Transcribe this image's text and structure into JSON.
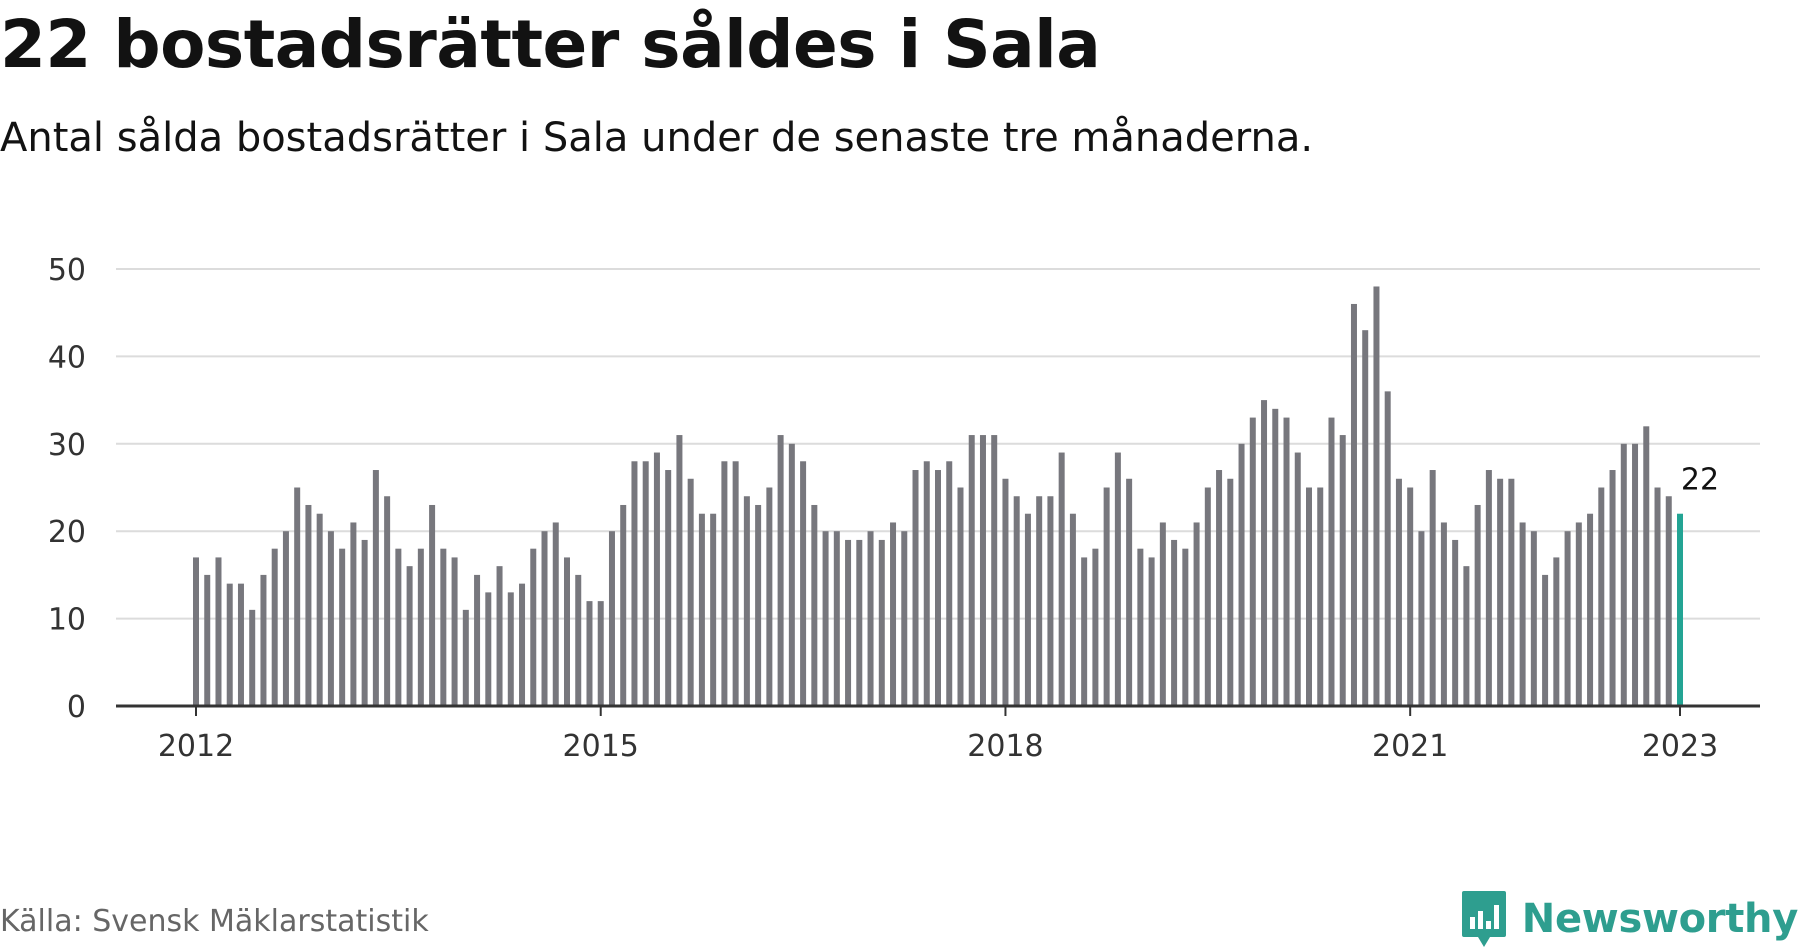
{
  "header": {
    "title": "22 bostadsrätter såldes i Sala",
    "subtitle": "Antal sålda bostadsrätter i Sala under de senaste tre månaderna."
  },
  "footer": {
    "source": "Källa: Svensk Mäklarstatistik",
    "brand": "Newsworthy",
    "brand_icon": "newsworthy-logo-icon"
  },
  "colors": {
    "bar": "#77777d",
    "highlight": "#23a494",
    "grid": "#dcdcdc",
    "axis": "#333333",
    "brand": "#2e9e8f"
  },
  "chart_data": {
    "type": "bar",
    "x_start": "2012-01",
    "x_unit": "month",
    "values": [
      17,
      15,
      17,
      14,
      14,
      11,
      15,
      18,
      20,
      25,
      23,
      22,
      20,
      18,
      21,
      19,
      27,
      24,
      18,
      16,
      18,
      23,
      18,
      17,
      11,
      15,
      13,
      16,
      13,
      14,
      18,
      20,
      21,
      17,
      15,
      12,
      12,
      20,
      23,
      28,
      28,
      29,
      27,
      31,
      26,
      22,
      22,
      28,
      28,
      24,
      23,
      25,
      31,
      30,
      28,
      23,
      20,
      20,
      19,
      19,
      20,
      19,
      21,
      20,
      27,
      28,
      27,
      28,
      25,
      31,
      31,
      31,
      26,
      24,
      22,
      24,
      24,
      29,
      22,
      17,
      18,
      25,
      29,
      26,
      18,
      17,
      21,
      19,
      18,
      21,
      25,
      27,
      26,
      30,
      33,
      35,
      34,
      33,
      29,
      25,
      25,
      33,
      31,
      46,
      43,
      48,
      36,
      26,
      25,
      20,
      27,
      21,
      19,
      16,
      23,
      27,
      26,
      26,
      21,
      20,
      15,
      17,
      20,
      21,
      22,
      25,
      27,
      30,
      30,
      32,
      25,
      24,
      22
    ],
    "highlight_last": true,
    "highlight_label": "22",
    "x_ticks": [
      "2012",
      "2015",
      "2018",
      "2021",
      "2023"
    ],
    "y_ticks": [
      0,
      10,
      20,
      30,
      40,
      50
    ],
    "ylim": [
      0,
      50
    ],
    "grid": true,
    "legend": "none"
  }
}
